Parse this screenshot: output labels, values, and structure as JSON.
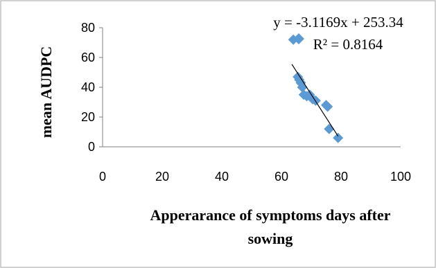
{
  "chart_data": {
    "type": "scatter",
    "title": "",
    "xlabel": "Apperarance of symptoms days after sowing",
    "ylabel": "mean AUDPC",
    "xlim": [
      0,
      100
    ],
    "ylim": [
      0,
      80
    ],
    "xticks": [
      "0",
      "20",
      "40",
      "60",
      "80",
      "100"
    ],
    "yticks": [
      "0",
      "20",
      "40",
      "60",
      "80"
    ],
    "grid": false,
    "legend": "none",
    "series": [
      {
        "points": [
          {
            "x": 64,
            "y": 72
          },
          {
            "x": 65.5,
            "y": 47
          },
          {
            "x": 66,
            "y": 45
          },
          {
            "x": 66.5,
            "y": 43
          },
          {
            "x": 67,
            "y": 40
          },
          {
            "x": 67.5,
            "y": 35
          },
          {
            "x": 68.5,
            "y": 34
          },
          {
            "x": 69.5,
            "y": 35
          },
          {
            "x": 70.5,
            "y": 32
          },
          {
            "x": 71.5,
            "y": 31
          },
          {
            "x": 75,
            "y": 28
          },
          {
            "x": 75.5,
            "y": 27
          },
          {
            "x": 76,
            "y": 12
          },
          {
            "x": 79,
            "y": 6
          }
        ]
      }
    ],
    "trendline": {
      "slope": -3.1169,
      "intercept": 253.34,
      "x_from": 63.5,
      "x_to": 79
    },
    "annotations": {
      "equation": "y = -3.1169x + 253.34",
      "r_squared": "R² = 0.8164"
    },
    "colors": {
      "marker": "#5B9BD5",
      "trendline": "#000000",
      "border": "#a6a6a6"
    }
  }
}
